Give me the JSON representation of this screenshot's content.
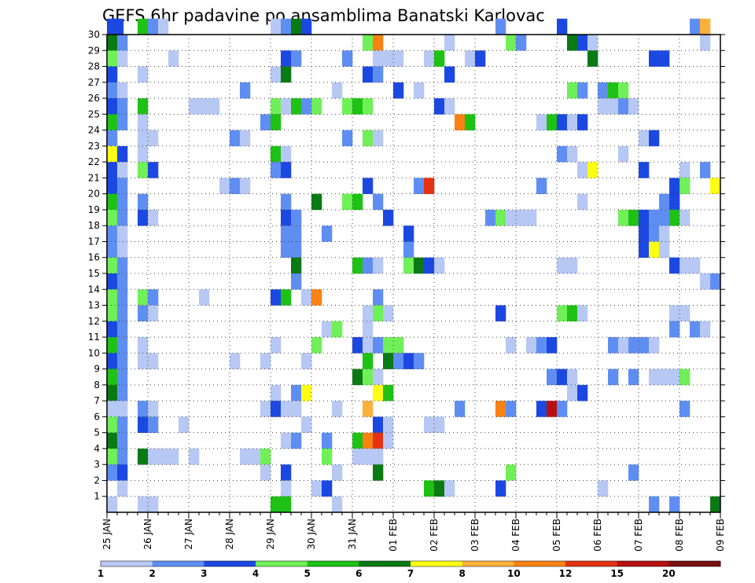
{
  "chart_data": {
    "type": "heatmap",
    "title": "GEFS 6hr padavine po ansamblima Banatski Karlovac",
    "x_tick_labels": [
      "25 JAN",
      "26 JAN",
      "27 JAN",
      "28 JAN",
      "29 JAN",
      "30 JAN",
      "31 JAN",
      "01 FEB",
      "02 FEB",
      "03 FEB",
      "04 FEB",
      "05 FEB",
      "06 FEB",
      "07 FEB",
      "08 FEB",
      "09 FEB"
    ],
    "y_tick_labels": [
      "1",
      "2",
      "3",
      "4",
      "5",
      "6",
      "7",
      "8",
      "9",
      "10",
      "11",
      "12",
      "13",
      "14",
      "15",
      "16",
      "17",
      "18",
      "19",
      "20",
      "21",
      "22",
      "23",
      "24",
      "25",
      "26",
      "27",
      "28",
      "29",
      "30"
    ],
    "x_range_steps": [
      0,
      60
    ],
    "steps_per_day": 4,
    "y_range": [
      0,
      30
    ],
    "grid": "dotted",
    "colorbar": {
      "levels": [
        "1",
        "2",
        "3",
        "4",
        "5",
        "6",
        "7",
        "8",
        "10",
        "12",
        "15",
        "20"
      ],
      "colors": [
        "#b8c8f4",
        "#5f8ef2",
        "#1c48e2",
        "#70f058",
        "#1ec214",
        "#0a7a14",
        "#fefe14",
        "#fcb03c",
        "#fa8214",
        "#e43212",
        "#b81010",
        "#781010"
      ]
    },
    "cells": [
      [
        30,
        0,
        3
      ],
      [
        30,
        0.6,
        3
      ],
      [
        30,
        3,
        5
      ],
      [
        30,
        4,
        2
      ],
      [
        30,
        5,
        1
      ],
      [
        30,
        16,
        1
      ],
      [
        30,
        17,
        2
      ],
      [
        30,
        18,
        6
      ],
      [
        30,
        19,
        3
      ],
      [
        30,
        38,
        2
      ],
      [
        30,
        44,
        3
      ],
      [
        30,
        57,
        2
      ],
      [
        30,
        58,
        8
      ],
      [
        29,
        0,
        6
      ],
      [
        29,
        1,
        2
      ],
      [
        29,
        25,
        4
      ],
      [
        29,
        26,
        9
      ],
      [
        29,
        33,
        1
      ],
      [
        29,
        39,
        4
      ],
      [
        29,
        40,
        2
      ],
      [
        29,
        45,
        6
      ],
      [
        29,
        46,
        3
      ],
      [
        29,
        47,
        1
      ],
      [
        29,
        58,
        1
      ],
      [
        28,
        0,
        4
      ],
      [
        28,
        1,
        1
      ],
      [
        28,
        6,
        1
      ],
      [
        28,
        17,
        3
      ],
      [
        28,
        18,
        2
      ],
      [
        28,
        23,
        2
      ],
      [
        28,
        26,
        1
      ],
      [
        28,
        27,
        1
      ],
      [
        28,
        28,
        1
      ],
      [
        28,
        31,
        1
      ],
      [
        28,
        32,
        5
      ],
      [
        28,
        35,
        1
      ],
      [
        28,
        36,
        3
      ],
      [
        28,
        47,
        6
      ],
      [
        28,
        53,
        3
      ],
      [
        28,
        54,
        3
      ],
      [
        27,
        0,
        3
      ],
      [
        27,
        3,
        1
      ],
      [
        27,
        16,
        1
      ],
      [
        27,
        17,
        6
      ],
      [
        27,
        25,
        3
      ],
      [
        27,
        26,
        2
      ],
      [
        27,
        33,
        3
      ],
      [
        26,
        0,
        2
      ],
      [
        26,
        1,
        1
      ],
      [
        26,
        13,
        2
      ],
      [
        26,
        22,
        1
      ],
      [
        26,
        28,
        3
      ],
      [
        26,
        30,
        1
      ],
      [
        26,
        45,
        4
      ],
      [
        26,
        46,
        2
      ],
      [
        26,
        48,
        2
      ],
      [
        26,
        49,
        5
      ],
      [
        26,
        50,
        4
      ],
      [
        25,
        0,
        3
      ],
      [
        25,
        1,
        2
      ],
      [
        25,
        3,
        5
      ],
      [
        25,
        8,
        1
      ],
      [
        25,
        9,
        1
      ],
      [
        25,
        10,
        1
      ],
      [
        25,
        16,
        4
      ],
      [
        25,
        17,
        1
      ],
      [
        25,
        18,
        5
      ],
      [
        25,
        19,
        2
      ],
      [
        25,
        20,
        4
      ],
      [
        25,
        23,
        4
      ],
      [
        25,
        24,
        5
      ],
      [
        25,
        25,
        4
      ],
      [
        25,
        32,
        3
      ],
      [
        25,
        33,
        1
      ],
      [
        25,
        48,
        1
      ],
      [
        25,
        49,
        1
      ],
      [
        25,
        50,
        2
      ],
      [
        25,
        51,
        1
      ],
      [
        24,
        0,
        5
      ],
      [
        24,
        1,
        2
      ],
      [
        24,
        3,
        1
      ],
      [
        24,
        15,
        2
      ],
      [
        24,
        16,
        5
      ],
      [
        24,
        34,
        9
      ],
      [
        24,
        35,
        5
      ],
      [
        24,
        42,
        1
      ],
      [
        24,
        43,
        5
      ],
      [
        24,
        44,
        3
      ],
      [
        24,
        45,
        1
      ],
      [
        24,
        46,
        3
      ],
      [
        23,
        0,
        2
      ],
      [
        23,
        3,
        1
      ],
      [
        23,
        4,
        1
      ],
      [
        23,
        12,
        2
      ],
      [
        23,
        13,
        1
      ],
      [
        23,
        23,
        2
      ],
      [
        23,
        25,
        4
      ],
      [
        23,
        26,
        1
      ],
      [
        23,
        52,
        1
      ],
      [
        23,
        53,
        3
      ],
      [
        22,
        0,
        7
      ],
      [
        22,
        1,
        3
      ],
      [
        22,
        3,
        1
      ],
      [
        22,
        16,
        5
      ],
      [
        22,
        17,
        1
      ],
      [
        22,
        44,
        2
      ],
      [
        22,
        45,
        1
      ],
      [
        22,
        50,
        1
      ],
      [
        21,
        0,
        3
      ],
      [
        21,
        1,
        1
      ],
      [
        21,
        3,
        4
      ],
      [
        21,
        4,
        3
      ],
      [
        21,
        16,
        2
      ],
      [
        21,
        17,
        3
      ],
      [
        21,
        46,
        1
      ],
      [
        21,
        47,
        7
      ],
      [
        21,
        52,
        3
      ],
      [
        21,
        56,
        1
      ],
      [
        21,
        58,
        2
      ],
      [
        20,
        0,
        3
      ],
      [
        20,
        1,
        2
      ],
      [
        20,
        11,
        1
      ],
      [
        20,
        12,
        2
      ],
      [
        20,
        13,
        1
      ],
      [
        20,
        25,
        3
      ],
      [
        20,
        30,
        2
      ],
      [
        20,
        31,
        10
      ],
      [
        20,
        42,
        2
      ],
      [
        20,
        55,
        3
      ],
      [
        20,
        56,
        4
      ],
      [
        20,
        59,
        7
      ],
      [
        19,
        0,
        5
      ],
      [
        19,
        1,
        2
      ],
      [
        19,
        3,
        2
      ],
      [
        19,
        17,
        2
      ],
      [
        19,
        20,
        6
      ],
      [
        19,
        23,
        4
      ],
      [
        19,
        24,
        5
      ],
      [
        19,
        26,
        2
      ],
      [
        19,
        46,
        1
      ],
      [
        19,
        54,
        2
      ],
      [
        19,
        55,
        3
      ],
      [
        18,
        0,
        4
      ],
      [
        18,
        1,
        2
      ],
      [
        18,
        3,
        3
      ],
      [
        18,
        4,
        1
      ],
      [
        18,
        17,
        3
      ],
      [
        18,
        18,
        2
      ],
      [
        18,
        27,
        3
      ],
      [
        18,
        37,
        2
      ],
      [
        18,
        38,
        4
      ],
      [
        18,
        39,
        1
      ],
      [
        18,
        40,
        1
      ],
      [
        18,
        41,
        1
      ],
      [
        18,
        50,
        4
      ],
      [
        18,
        51,
        5
      ],
      [
        18,
        52,
        3
      ],
      [
        18,
        53,
        2
      ],
      [
        18,
        54,
        2
      ],
      [
        18,
        55,
        5
      ],
      [
        18,
        56,
        1
      ],
      [
        17,
        0,
        2
      ],
      [
        17,
        1,
        1
      ],
      [
        17,
        17,
        2
      ],
      [
        17,
        18,
        2
      ],
      [
        17,
        21,
        2
      ],
      [
        17,
        29,
        3
      ],
      [
        17,
        52,
        3
      ],
      [
        17,
        53,
        2
      ],
      [
        17,
        54,
        1
      ],
      [
        16,
        0,
        2
      ],
      [
        16,
        1,
        1
      ],
      [
        16,
        17,
        2
      ],
      [
        16,
        18,
        2
      ],
      [
        16,
        29,
        2
      ],
      [
        16,
        52,
        3
      ],
      [
        16,
        53,
        7
      ],
      [
        16,
        54,
        1
      ],
      [
        15,
        0,
        4
      ],
      [
        15,
        1,
        2
      ],
      [
        15,
        18,
        6
      ],
      [
        15,
        24,
        5
      ],
      [
        15,
        25,
        2
      ],
      [
        15,
        26,
        1
      ],
      [
        15,
        29,
        4
      ],
      [
        15,
        30,
        6
      ],
      [
        15,
        31,
        3
      ],
      [
        15,
        32,
        1
      ],
      [
        15,
        44,
        1
      ],
      [
        15,
        45,
        1
      ],
      [
        15,
        55,
        3
      ],
      [
        15,
        56,
        1
      ],
      [
        15,
        57,
        1
      ],
      [
        14,
        0,
        3
      ],
      [
        14,
        1,
        2
      ],
      [
        14,
        18,
        2
      ],
      [
        14,
        58,
        1
      ],
      [
        14,
        59,
        2
      ],
      [
        13,
        0,
        4
      ],
      [
        13,
        1,
        2
      ],
      [
        13,
        3,
        4
      ],
      [
        13,
        4,
        2
      ],
      [
        13,
        9,
        1
      ],
      [
        13,
        16,
        3
      ],
      [
        13,
        17,
        5
      ],
      [
        13,
        19,
        1
      ],
      [
        13,
        20,
        9
      ],
      [
        13,
        26,
        2
      ],
      [
        12,
        0,
        4
      ],
      [
        12,
        1,
        2
      ],
      [
        12,
        3,
        2
      ],
      [
        12,
        4,
        1
      ],
      [
        12,
        25,
        1
      ],
      [
        12,
        26,
        4
      ],
      [
        12,
        27,
        1
      ],
      [
        12,
        38,
        3
      ],
      [
        12,
        44,
        4
      ],
      [
        12,
        45,
        5
      ],
      [
        12,
        46,
        1
      ],
      [
        12,
        55,
        1
      ],
      [
        12,
        56,
        1
      ],
      [
        11,
        0,
        3
      ],
      [
        11,
        1,
        2
      ],
      [
        11,
        21,
        1
      ],
      [
        11,
        22,
        4
      ],
      [
        11,
        25,
        1
      ],
      [
        11,
        55,
        2
      ],
      [
        11,
        57,
        2
      ],
      [
        11,
        58,
        1
      ],
      [
        10,
        0,
        5
      ],
      [
        10,
        1,
        2
      ],
      [
        10,
        3,
        1
      ],
      [
        10,
        16,
        1
      ],
      [
        10,
        20,
        4
      ],
      [
        10,
        24,
        3
      ],
      [
        10,
        25,
        1
      ],
      [
        10,
        26,
        2
      ],
      [
        10,
        27,
        4
      ],
      [
        10,
        28,
        4
      ],
      [
        10,
        39,
        1
      ],
      [
        10,
        41,
        1
      ],
      [
        10,
        42,
        2
      ],
      [
        10,
        43,
        3
      ],
      [
        10,
        49,
        2
      ],
      [
        10,
        50,
        1
      ],
      [
        10,
        51,
        2
      ],
      [
        10,
        52,
        2
      ],
      [
        10,
        53,
        1
      ],
      [
        9,
        0,
        3
      ],
      [
        9,
        1,
        2
      ],
      [
        9,
        3,
        1
      ],
      [
        9,
        4,
        1
      ],
      [
        9,
        12,
        1
      ],
      [
        9,
        15,
        1
      ],
      [
        9,
        19,
        1
      ],
      [
        9,
        25,
        5
      ],
      [
        9,
        27,
        6
      ],
      [
        9,
        28,
        2
      ],
      [
        9,
        29,
        3
      ],
      [
        9,
        30,
        2
      ],
      [
        8,
        0,
        5
      ],
      [
        8,
        1,
        2
      ],
      [
        8,
        24,
        6
      ],
      [
        8,
        25,
        4
      ],
      [
        8,
        26,
        1
      ],
      [
        8,
        43,
        2
      ],
      [
        8,
        44,
        3
      ],
      [
        8,
        45,
        1
      ],
      [
        8,
        49,
        2
      ],
      [
        8,
        51,
        2
      ],
      [
        8,
        53,
        1
      ],
      [
        8,
        54,
        1
      ],
      [
        8,
        55,
        1
      ],
      [
        8,
        56,
        4
      ],
      [
        7,
        0,
        6
      ],
      [
        7,
        1,
        2
      ],
      [
        7,
        16,
        1
      ],
      [
        7,
        18,
        2
      ],
      [
        7,
        19,
        7
      ],
      [
        7,
        26,
        7
      ],
      [
        7,
        27,
        5
      ],
      [
        7,
        45,
        1
      ],
      [
        7,
        46,
        3
      ],
      [
        6,
        0,
        1
      ],
      [
        6,
        1,
        1
      ],
      [
        6,
        3,
        2
      ],
      [
        6,
        4,
        1
      ],
      [
        6,
        15,
        1
      ],
      [
        6,
        16,
        3
      ],
      [
        6,
        17,
        1
      ],
      [
        6,
        18,
        1
      ],
      [
        6,
        22,
        1
      ],
      [
        6,
        25,
        8
      ],
      [
        6,
        34,
        2
      ],
      [
        6,
        38,
        9
      ],
      [
        6,
        39,
        2
      ],
      [
        6,
        42,
        3
      ],
      [
        6,
        43,
        11
      ],
      [
        6,
        44,
        2
      ],
      [
        6,
        56,
        2
      ],
      [
        5,
        0,
        4
      ],
      [
        5,
        1,
        2
      ],
      [
        5,
        3,
        3
      ],
      [
        5,
        4,
        2
      ],
      [
        5,
        7,
        1
      ],
      [
        5,
        19,
        1
      ],
      [
        5,
        26,
        3
      ],
      [
        5,
        27,
        1
      ],
      [
        5,
        31,
        1
      ],
      [
        5,
        32,
        1
      ],
      [
        4,
        0,
        6
      ],
      [
        4,
        1,
        2
      ],
      [
        4,
        17,
        1
      ],
      [
        4,
        18,
        2
      ],
      [
        4,
        21,
        2
      ],
      [
        4,
        24,
        5
      ],
      [
        4,
        25,
        9
      ],
      [
        4,
        26,
        10
      ],
      [
        4,
        27,
        1
      ],
      [
        3,
        0,
        4
      ],
      [
        3,
        1,
        2
      ],
      [
        3,
        3,
        6
      ],
      [
        3,
        4,
        1
      ],
      [
        3,
        5,
        1
      ],
      [
        3,
        6,
        1
      ],
      [
        3,
        8,
        1
      ],
      [
        3,
        13,
        1
      ],
      [
        3,
        14,
        1
      ],
      [
        3,
        15,
        4
      ],
      [
        3,
        21,
        4
      ],
      [
        3,
        24,
        1
      ],
      [
        3,
        25,
        1
      ],
      [
        3,
        26,
        1
      ],
      [
        2,
        0,
        2
      ],
      [
        2,
        1,
        3
      ],
      [
        2,
        15,
        1
      ],
      [
        2,
        17,
        3
      ],
      [
        2,
        22,
        1
      ],
      [
        2,
        26,
        6
      ],
      [
        2,
        39,
        4
      ],
      [
        2,
        51,
        2
      ],
      [
        1,
        1,
        1
      ],
      [
        1,
        17,
        1
      ],
      [
        1,
        20,
        1
      ],
      [
        1,
        21,
        3
      ],
      [
        1,
        31,
        5
      ],
      [
        1,
        32,
        6
      ],
      [
        1,
        33,
        1
      ],
      [
        1,
        38,
        3
      ],
      [
        1,
        48,
        1
      ],
      [
        0,
        0,
        1
      ],
      [
        0,
        3,
        1
      ],
      [
        0,
        4,
        1
      ],
      [
        0,
        16,
        5
      ],
      [
        0,
        17,
        5
      ],
      [
        0,
        22,
        1
      ],
      [
        0,
        53,
        2
      ],
      [
        0,
        55,
        2
      ],
      [
        0,
        59,
        6
      ]
    ]
  }
}
